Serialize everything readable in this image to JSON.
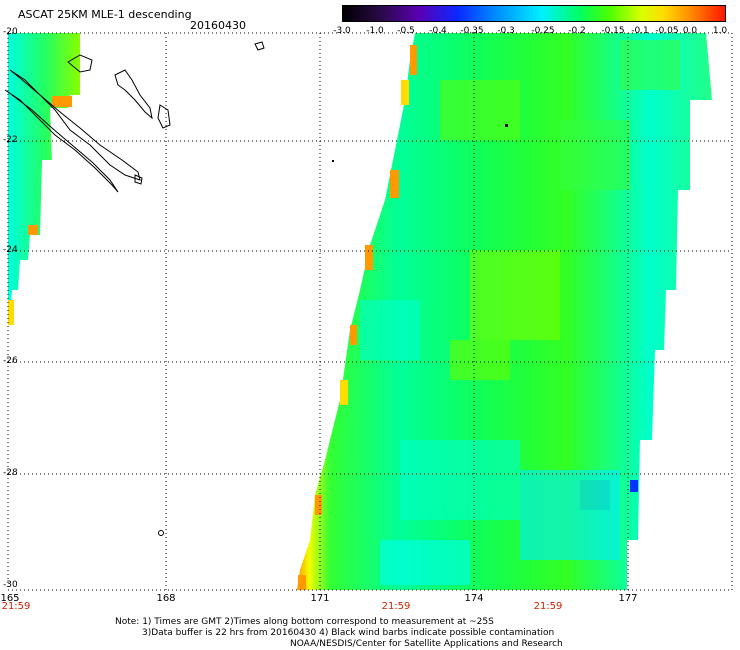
{
  "header": {
    "title": "ASCAT 25KM MLE-1 descending",
    "date": "20160430"
  },
  "colorbar": {
    "labels": [
      "-3.0",
      "-1.0",
      "-0.5",
      "-0.4",
      "-0.35",
      "-0.3",
      "-0.25",
      "-0.2",
      "-0.15",
      "-0.1",
      "-0.05",
      "0.0",
      "1.0"
    ],
    "colors": [
      "#000000",
      "#2a0a48",
      "#5a00b4",
      "#0a28ff",
      "#008cff",
      "#00f0ff",
      "#00ff60",
      "#50ff00",
      "#d8ff00",
      "#ffdc00",
      "#ff8c00",
      "#ff1400"
    ]
  },
  "axes": {
    "lat_labels": [
      "-20",
      "-22",
      "-24",
      "-26",
      "-28",
      "-30"
    ],
    "lon_labels": [
      "165",
      "168",
      "171",
      "174",
      "177"
    ],
    "time_labels": [
      "21:59",
      "21:59",
      "21:59"
    ]
  },
  "notes": {
    "line1": "Note: 1) Times are GMT 2)Times along bottom correspond to measurement at ~25S",
    "line2": "3)Data buffer is 22 hrs from 20160430 4) Black wind barbs indicate possible contamination",
    "line3": "NOAA/NESDIS/Center for Satellite Applications and Research"
  }
}
